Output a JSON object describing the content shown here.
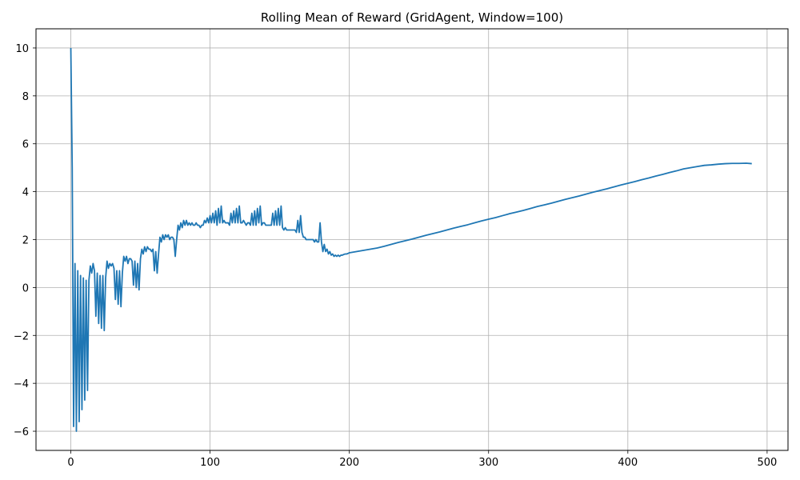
{
  "chart_data": {
    "type": "line",
    "title": "Rolling Mean of Reward (GridAgent, Window=100)",
    "xlabel": "",
    "ylabel": "",
    "xlim": [
      -25,
      515
    ],
    "ylim": [
      -6.8,
      10.8
    ],
    "xticks": [
      0,
      100,
      200,
      300,
      400,
      500
    ],
    "yticks": [
      -6,
      -4,
      -2,
      0,
      2,
      4,
      6,
      8,
      10
    ],
    "grid": true,
    "legend": "none",
    "line_color": "#1f77b4",
    "series": [
      {
        "values": [
          [
            0,
            10.0
          ],
          [
            1,
            5.0
          ],
          [
            2,
            -5.8
          ],
          [
            3,
            1.0
          ],
          [
            4,
            -6.0
          ],
          [
            5,
            0.7
          ],
          [
            6,
            -5.6
          ],
          [
            7,
            0.5
          ],
          [
            8,
            -5.1
          ],
          [
            9,
            0.4
          ],
          [
            10,
            -4.7
          ],
          [
            11,
            0.3
          ],
          [
            12,
            -4.3
          ],
          [
            13,
            0.3
          ],
          [
            14,
            0.9
          ],
          [
            15,
            0.6
          ],
          [
            16,
            1.0
          ],
          [
            17,
            0.7
          ],
          [
            18,
            -1.2
          ],
          [
            19,
            0.6
          ],
          [
            20,
            -1.5
          ],
          [
            21,
            0.5
          ],
          [
            22,
            -1.7
          ],
          [
            23,
            0.5
          ],
          [
            24,
            -1.8
          ],
          [
            25,
            0.4
          ],
          [
            26,
            1.1
          ],
          [
            27,
            0.8
          ],
          [
            28,
            1.0
          ],
          [
            29,
            0.9
          ],
          [
            30,
            1.0
          ],
          [
            31,
            0.8
          ],
          [
            32,
            -0.5
          ],
          [
            33,
            0.7
          ],
          [
            34,
            -0.7
          ],
          [
            35,
            0.7
          ],
          [
            36,
            -0.8
          ],
          [
            37,
            0.6
          ],
          [
            38,
            1.3
          ],
          [
            39,
            1.1
          ],
          [
            40,
            1.3
          ],
          [
            41,
            1.0
          ],
          [
            42,
            1.2
          ],
          [
            43,
            1.2
          ],
          [
            44,
            1.1
          ],
          [
            45,
            0.1
          ],
          [
            46,
            1.1
          ],
          [
            47,
            0.0
          ],
          [
            48,
            1.0
          ],
          [
            49,
            -0.1
          ],
          [
            50,
            1.2
          ],
          [
            51,
            1.6
          ],
          [
            52,
            1.4
          ],
          [
            53,
            1.7
          ],
          [
            54,
            1.5
          ],
          [
            55,
            1.7
          ],
          [
            56,
            1.6
          ],
          [
            57,
            1.6
          ],
          [
            58,
            1.5
          ],
          [
            59,
            1.6
          ],
          [
            60,
            0.7
          ],
          [
            61,
            1.5
          ],
          [
            62,
            0.6
          ],
          [
            63,
            1.4
          ],
          [
            64,
            2.1
          ],
          [
            65,
            1.9
          ],
          [
            66,
            2.2
          ],
          [
            67,
            2.0
          ],
          [
            68,
            2.2
          ],
          [
            69,
            2.1
          ],
          [
            70,
            2.2
          ],
          [
            71,
            2.0
          ],
          [
            72,
            2.1
          ],
          [
            73,
            2.1
          ],
          [
            74,
            2.0
          ],
          [
            75,
            1.3
          ],
          [
            76,
            2.0
          ],
          [
            77,
            2.6
          ],
          [
            78,
            2.4
          ],
          [
            79,
            2.7
          ],
          [
            80,
            2.5
          ],
          [
            81,
            2.8
          ],
          [
            82,
            2.6
          ],
          [
            83,
            2.8
          ],
          [
            84,
            2.6
          ],
          [
            85,
            2.7
          ],
          [
            86,
            2.6
          ],
          [
            87,
            2.7
          ],
          [
            88,
            2.6
          ],
          [
            89,
            2.6
          ],
          [
            90,
            2.7
          ],
          [
            91,
            2.6
          ],
          [
            92,
            2.6
          ],
          [
            93,
            2.5
          ],
          [
            94,
            2.6
          ],
          [
            95,
            2.6
          ],
          [
            96,
            2.8
          ],
          [
            97,
            2.7
          ],
          [
            98,
            2.9
          ],
          [
            99,
            2.7
          ],
          [
            100,
            3.0
          ],
          [
            101,
            2.7
          ],
          [
            102,
            3.1
          ],
          [
            103,
            2.7
          ],
          [
            104,
            3.2
          ],
          [
            105,
            2.6
          ],
          [
            106,
            3.3
          ],
          [
            107,
            2.7
          ],
          [
            108,
            3.4
          ],
          [
            109,
            2.7
          ],
          [
            110,
            2.8
          ],
          [
            111,
            2.7
          ],
          [
            112,
            2.7
          ],
          [
            113,
            2.7
          ],
          [
            114,
            2.6
          ],
          [
            115,
            3.1
          ],
          [
            116,
            2.7
          ],
          [
            117,
            3.2
          ],
          [
            118,
            2.7
          ],
          [
            119,
            3.3
          ],
          [
            120,
            2.7
          ],
          [
            121,
            3.4
          ],
          [
            122,
            2.7
          ],
          [
            123,
            2.7
          ],
          [
            124,
            2.8
          ],
          [
            125,
            2.7
          ],
          [
            126,
            2.6
          ],
          [
            127,
            2.7
          ],
          [
            128,
            2.7
          ],
          [
            129,
            2.6
          ],
          [
            130,
            3.1
          ],
          [
            131,
            2.6
          ],
          [
            132,
            3.2
          ],
          [
            133,
            2.6
          ],
          [
            134,
            3.3
          ],
          [
            135,
            2.7
          ],
          [
            136,
            3.4
          ],
          [
            137,
            2.6
          ],
          [
            138,
            2.7
          ],
          [
            139,
            2.7
          ],
          [
            140,
            2.6
          ],
          [
            141,
            2.6
          ],
          [
            142,
            2.6
          ],
          [
            143,
            2.6
          ],
          [
            144,
            2.6
          ],
          [
            145,
            3.1
          ],
          [
            146,
            2.6
          ],
          [
            147,
            3.2
          ],
          [
            148,
            2.6
          ],
          [
            149,
            3.3
          ],
          [
            150,
            2.6
          ],
          [
            151,
            3.4
          ],
          [
            152,
            2.5
          ],
          [
            153,
            2.4
          ],
          [
            154,
            2.5
          ],
          [
            155,
            2.4
          ],
          [
            156,
            2.4
          ],
          [
            157,
            2.4
          ],
          [
            158,
            2.4
          ],
          [
            159,
            2.4
          ],
          [
            160,
            2.4
          ],
          [
            161,
            2.4
          ],
          [
            162,
            2.3
          ],
          [
            163,
            2.8
          ],
          [
            164,
            2.3
          ],
          [
            165,
            3.0
          ],
          [
            166,
            2.3
          ],
          [
            167,
            2.1
          ],
          [
            168,
            2.1
          ],
          [
            169,
            2.0
          ],
          [
            170,
            2.0
          ],
          [
            171,
            2.0
          ],
          [
            172,
            2.0
          ],
          [
            173,
            2.0
          ],
          [
            174,
            2.0
          ],
          [
            175,
            1.9
          ],
          [
            176,
            2.0
          ],
          [
            177,
            1.9
          ],
          [
            178,
            1.9
          ],
          [
            179,
            2.7
          ],
          [
            180,
            1.9
          ],
          [
            181,
            1.5
          ],
          [
            182,
            1.8
          ],
          [
            183,
            1.5
          ],
          [
            184,
            1.6
          ],
          [
            185,
            1.4
          ],
          [
            186,
            1.5
          ],
          [
            187,
            1.35
          ],
          [
            188,
            1.4
          ],
          [
            189,
            1.3
          ],
          [
            190,
            1.35
          ],
          [
            191,
            1.3
          ],
          [
            192,
            1.35
          ],
          [
            193,
            1.3
          ],
          [
            194,
            1.35
          ],
          [
            195,
            1.35
          ],
          [
            196,
            1.38
          ],
          [
            197,
            1.4
          ],
          [
            198,
            1.4
          ],
          [
            199,
            1.42
          ],
          [
            200,
            1.45
          ],
          [
            210,
            1.55
          ],
          [
            215,
            1.6
          ],
          [
            220,
            1.65
          ],
          [
            225,
            1.72
          ],
          [
            230,
            1.8
          ],
          [
            235,
            1.88
          ],
          [
            240,
            1.95
          ],
          [
            245,
            2.02
          ],
          [
            250,
            2.1
          ],
          [
            255,
            2.18
          ],
          [
            260,
            2.25
          ],
          [
            265,
            2.32
          ],
          [
            270,
            2.4
          ],
          [
            275,
            2.48
          ],
          [
            280,
            2.55
          ],
          [
            285,
            2.62
          ],
          [
            290,
            2.7
          ],
          [
            295,
            2.78
          ],
          [
            300,
            2.85
          ],
          [
            305,
            2.92
          ],
          [
            310,
            3.0
          ],
          [
            315,
            3.08
          ],
          [
            320,
            3.15
          ],
          [
            325,
            3.22
          ],
          [
            330,
            3.3
          ],
          [
            335,
            3.38
          ],
          [
            340,
            3.45
          ],
          [
            345,
            3.52
          ],
          [
            350,
            3.6
          ],
          [
            355,
            3.68
          ],
          [
            360,
            3.75
          ],
          [
            365,
            3.82
          ],
          [
            370,
            3.9
          ],
          [
            375,
            3.98
          ],
          [
            380,
            4.05
          ],
          [
            385,
            4.12
          ],
          [
            390,
            4.2
          ],
          [
            395,
            4.28
          ],
          [
            400,
            4.35
          ],
          [
            405,
            4.42
          ],
          [
            410,
            4.5
          ],
          [
            415,
            4.57
          ],
          [
            420,
            4.65
          ],
          [
            425,
            4.72
          ],
          [
            430,
            4.8
          ],
          [
            435,
            4.87
          ],
          [
            440,
            4.95
          ],
          [
            445,
            5.0
          ],
          [
            450,
            5.05
          ],
          [
            455,
            5.1
          ],
          [
            460,
            5.12
          ],
          [
            465,
            5.15
          ],
          [
            470,
            5.17
          ],
          [
            475,
            5.18
          ],
          [
            480,
            5.18
          ],
          [
            485,
            5.19
          ],
          [
            489,
            5.17
          ]
        ]
      }
    ]
  }
}
